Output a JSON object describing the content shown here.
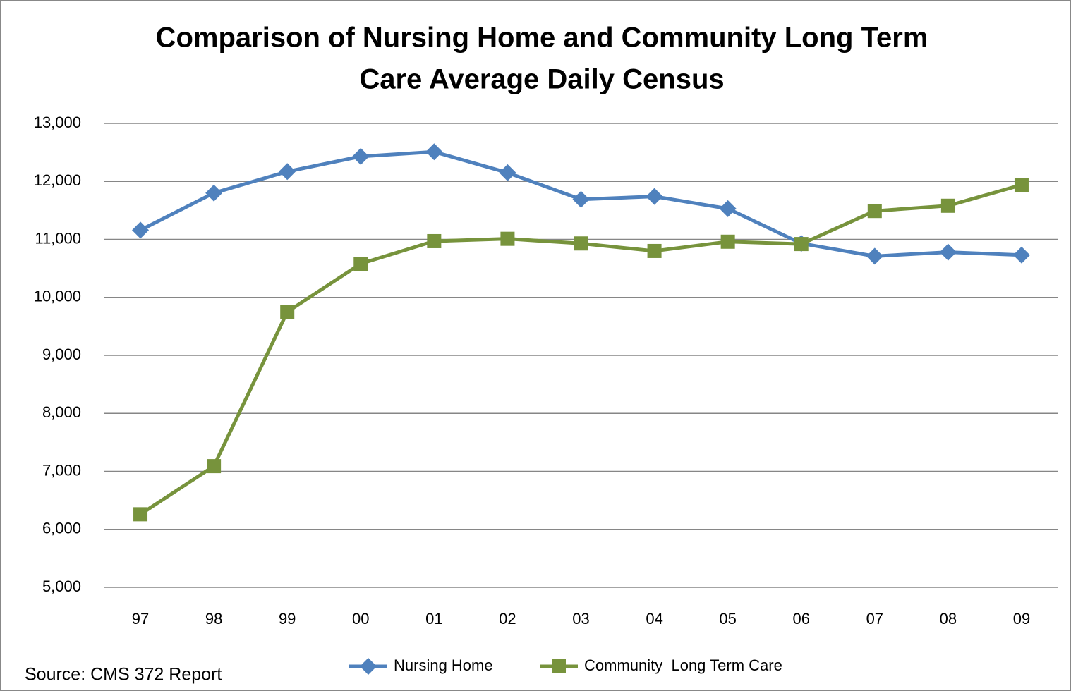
{
  "chart_data": {
    "type": "line",
    "title": [
      "Comparison of Nursing Home and Community Long Term",
      "Care Average Daily Census"
    ],
    "categories": [
      "97",
      "98",
      "99",
      "00",
      "01",
      "02",
      "03",
      "04",
      "05",
      "06",
      "07",
      "08",
      "09"
    ],
    "series": [
      {
        "name": "Nursing Home",
        "color": "#4f81bd",
        "marker": "diamond",
        "values": [
          11160,
          11800,
          12170,
          12430,
          12510,
          12150,
          11690,
          11740,
          11530,
          10930,
          10710,
          10780,
          10730
        ]
      },
      {
        "name": "Community  Long Term Care",
        "color": "#77933c",
        "marker": "square",
        "values": [
          6260,
          7090,
          9750,
          10580,
          10970,
          11010,
          10930,
          10800,
          10960,
          10920,
          11490,
          11580,
          11940
        ]
      }
    ],
    "ylim": [
      5000,
      13000
    ],
    "yticks": [
      {
        "value": 5000,
        "label": "5,000"
      },
      {
        "value": 6000,
        "label": "6,000"
      },
      {
        "value": 7000,
        "label": "7,000"
      },
      {
        "value": 8000,
        "label": "8,000"
      },
      {
        "value": 9000,
        "label": "9,000"
      },
      {
        "value": 10000,
        "label": "10,000"
      },
      {
        "value": 11000,
        "label": "11,000"
      },
      {
        "value": 12000,
        "label": "12,000"
      },
      {
        "value": 13000,
        "label": "13,000"
      }
    ],
    "grid": true,
    "legend": "bottom",
    "source": "Source: CMS 372 Report"
  }
}
